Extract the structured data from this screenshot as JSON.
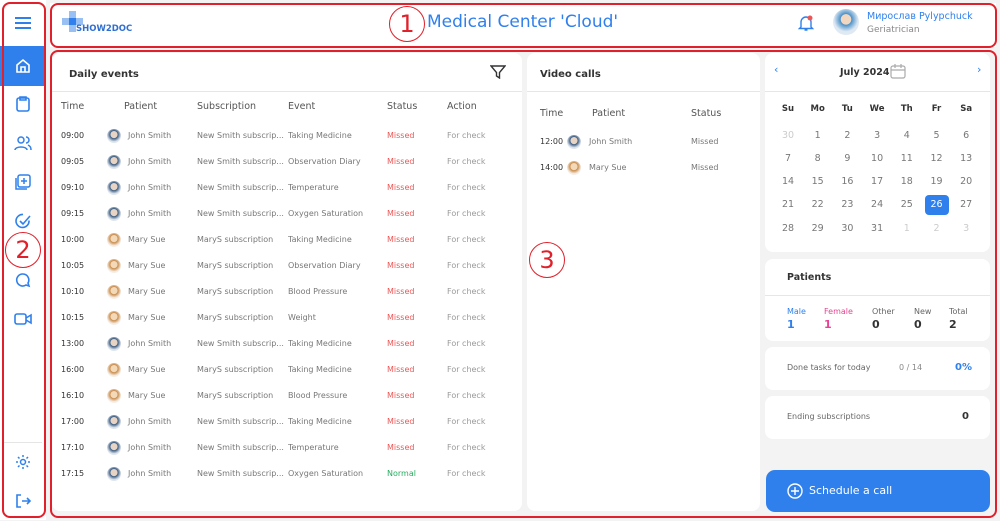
{
  "app": {
    "logo_text": "SHOW2DOC",
    "title": "Medical Center 'Cloud'"
  },
  "user": {
    "name": "Мирослав Pylypchuck",
    "role": "Geriatrician"
  },
  "sidebar": {
    "items": [
      "menu-icon",
      "home-icon",
      "clipboard-icon",
      "users-icon",
      "add-document-icon",
      "check-circle-icon",
      "chat-icon",
      "video-icon",
      "gear-icon",
      "logout-icon"
    ],
    "active": "home"
  },
  "annotations": [
    "1",
    "2",
    "3"
  ],
  "colors": {
    "accent": "#2f80ed",
    "missed": "#eb5757",
    "normal": "#27ae60",
    "female": "#e84393",
    "annotation": "#e0202a"
  },
  "daily_events": {
    "title": "Daily events",
    "columns": [
      "Time",
      "Patient",
      "Subscription",
      "Event",
      "Status",
      "Action"
    ],
    "rows": [
      [
        "09:00",
        "John Smith",
        "New Smith subscrip...",
        "Taking Medicine",
        "Missed",
        "For check"
      ],
      [
        "09:05",
        "John Smith",
        "New Smith subscrip...",
        "Observation Diary",
        "Missed",
        "For check"
      ],
      [
        "09:10",
        "John Smith",
        "New Smith subscrip...",
        "Temperature",
        "Missed",
        "For check"
      ],
      [
        "09:15",
        "John Smith",
        "New Smith subscrip...",
        "Oxygen Saturation",
        "Missed",
        "For check"
      ],
      [
        "10:00",
        "Mary Sue",
        "MaryS subscription",
        "Taking Medicine",
        "Missed",
        "For check"
      ],
      [
        "10:05",
        "Mary Sue",
        "MaryS subscription",
        "Observation Diary",
        "Missed",
        "For check"
      ],
      [
        "10:10",
        "Mary Sue",
        "MaryS subscription",
        "Blood Pressure",
        "Missed",
        "For check"
      ],
      [
        "10:15",
        "Mary Sue",
        "MaryS subscription",
        "Weight",
        "Missed",
        "For check"
      ],
      [
        "13:00",
        "John Smith",
        "New Smith subscrip...",
        "Taking Medicine",
        "Missed",
        "For check"
      ],
      [
        "16:00",
        "Mary Sue",
        "MaryS subscription",
        "Taking Medicine",
        "Missed",
        "For check"
      ],
      [
        "16:10",
        "Mary Sue",
        "MaryS subscription",
        "Blood Pressure",
        "Missed",
        "For check"
      ],
      [
        "17:00",
        "John Smith",
        "New Smith subscrip...",
        "Taking Medicine",
        "Missed",
        "For check"
      ],
      [
        "17:10",
        "John Smith",
        "New Smith subscrip...",
        "Temperature",
        "Missed",
        "For check"
      ],
      [
        "17:15",
        "John Smith",
        "New Smith subscrip...",
        "Oxygen Saturation",
        "Normal",
        "For check"
      ]
    ]
  },
  "video_calls": {
    "title": "Video calls",
    "columns": [
      "Time",
      "Patient",
      "Status"
    ],
    "rows": [
      [
        "12:00",
        "John Smith",
        "Missed"
      ],
      [
        "14:00",
        "Mary Sue",
        "Missed"
      ]
    ]
  },
  "calendar": {
    "month": "July 2024",
    "weekdays": [
      "Su",
      "Mo",
      "Tu",
      "We",
      "Th",
      "Fr",
      "Sa"
    ],
    "weeks": [
      [
        "30",
        1,
        2,
        3,
        4,
        5,
        6
      ],
      [
        7,
        8,
        9,
        10,
        11,
        12,
        13
      ],
      [
        14,
        15,
        16,
        17,
        18,
        19,
        20
      ],
      [
        21,
        22,
        23,
        24,
        25,
        26,
        27
      ],
      [
        28,
        29,
        30,
        31,
        "1",
        "2",
        "3"
      ]
    ],
    "selected": 26
  },
  "patients": {
    "title": "Patients",
    "stats": [
      {
        "label": "Male",
        "value": "1"
      },
      {
        "label": "Female",
        "value": "1"
      },
      {
        "label": "Other",
        "value": "0"
      },
      {
        "label": "New",
        "value": "0"
      },
      {
        "label": "Total",
        "value": "2"
      }
    ]
  },
  "tasks": {
    "label": "Done tasks for today",
    "count": "0 / 14",
    "percent": "0%"
  },
  "subscriptions": {
    "label": "Ending subscriptions",
    "value": "0"
  },
  "schedule_button": {
    "label": "Schedule a call"
  }
}
